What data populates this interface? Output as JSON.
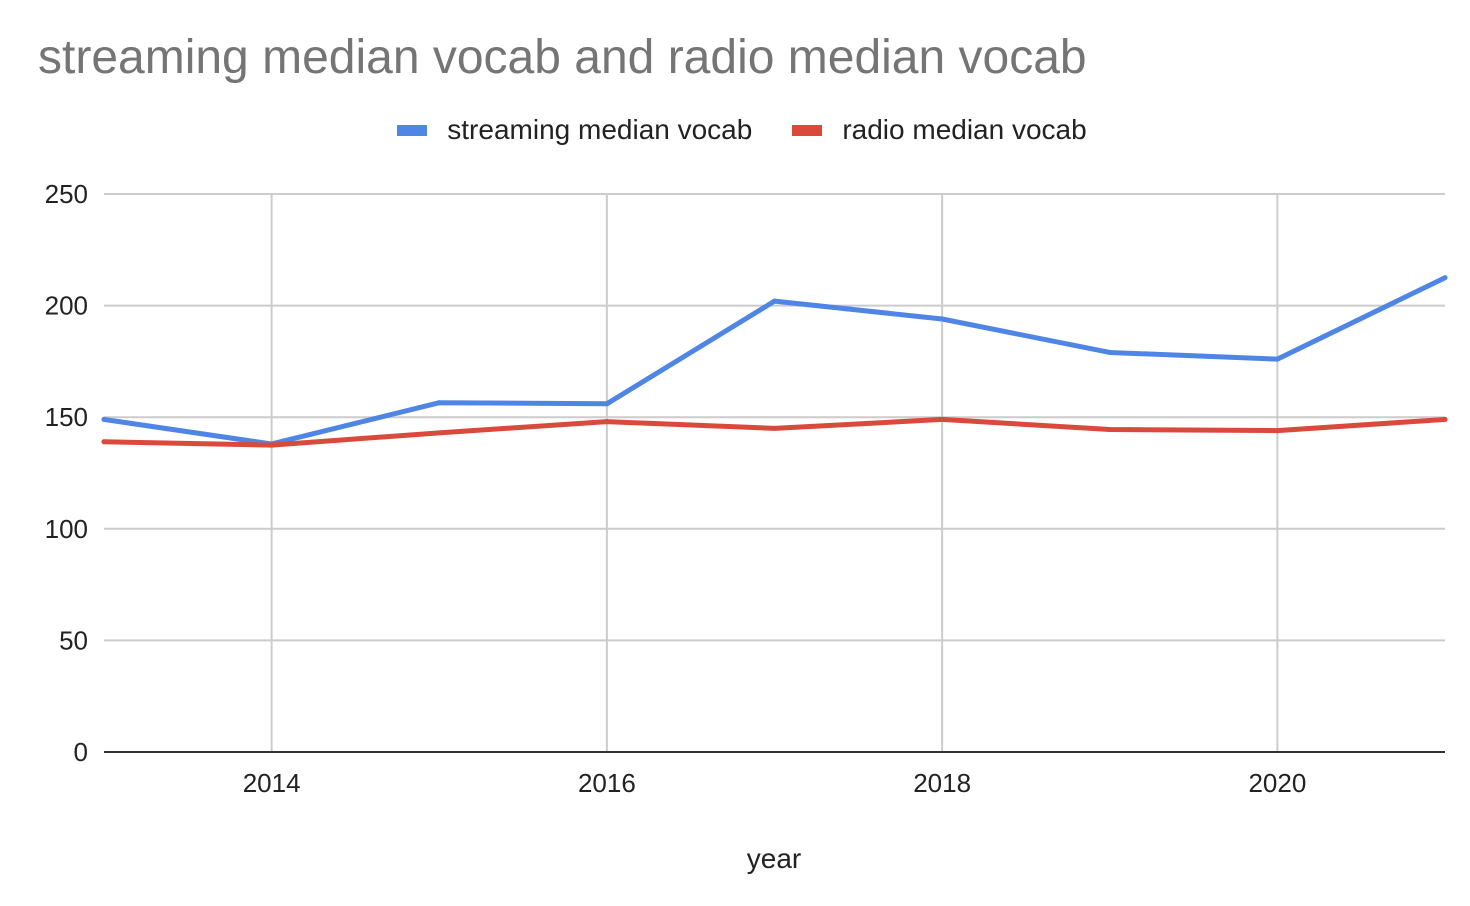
{
  "chart_data": {
    "type": "line",
    "title": "streaming median vocab and radio median vocab",
    "xlabel": "year",
    "ylabel": "",
    "x": [
      2013,
      2014,
      2015,
      2016,
      2017,
      2018,
      2019,
      2020,
      2021
    ],
    "series": [
      {
        "name": "streaming median vocab",
        "color": "#4f86e5",
        "values": [
          149,
          138,
          156.5,
          156,
          202,
          194,
          179,
          176,
          212.5
        ]
      },
      {
        "name": "radio median vocab",
        "color": "#d9493c",
        "values": [
          139,
          137.5,
          143,
          148,
          145,
          149,
          144.5,
          144,
          149
        ]
      }
    ],
    "xlim": [
      2013,
      2021
    ],
    "ylim": [
      0,
      250
    ],
    "y_ticks": [
      0,
      50,
      100,
      150,
      200,
      250
    ],
    "x_ticks": [
      2014,
      2016,
      2018,
      2020
    ],
    "grid": true,
    "legend_position": "top"
  }
}
